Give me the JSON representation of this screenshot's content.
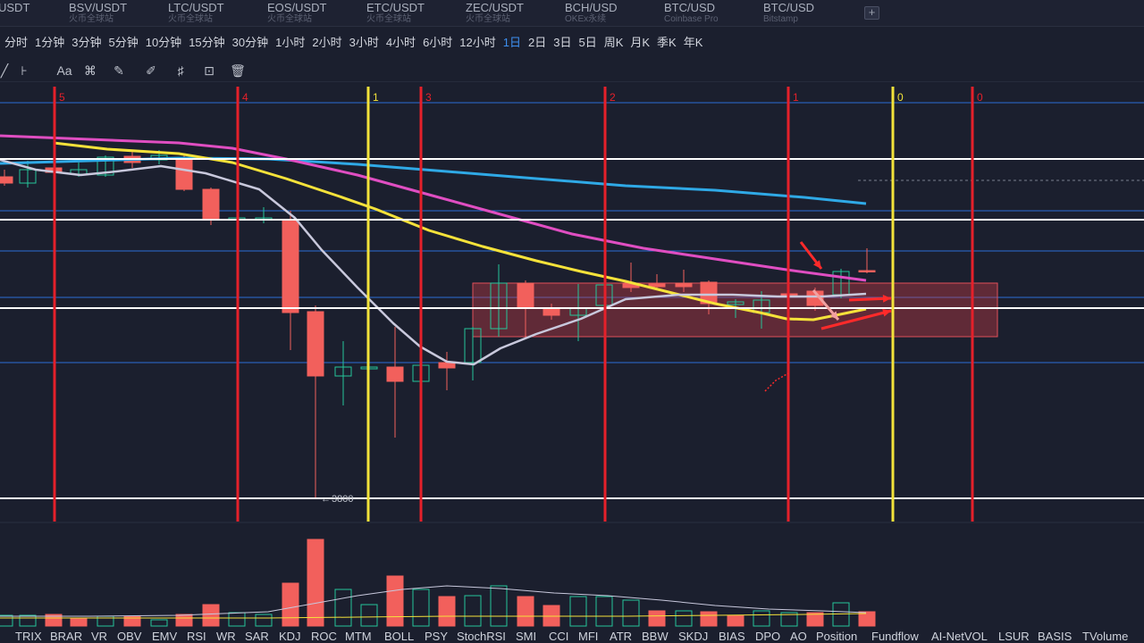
{
  "tabs": [
    {
      "symbol": "USDT",
      "exchange": ""
    },
    {
      "symbol": "BSV/USDT",
      "exchange": "火币全球站"
    },
    {
      "symbol": "LTC/USDT",
      "exchange": "火币全球站"
    },
    {
      "symbol": "EOS/USDT",
      "exchange": "火币全球站"
    },
    {
      "symbol": "ETC/USDT",
      "exchange": "火币全球站"
    },
    {
      "symbol": "ZEC/USDT",
      "exchange": "火币全球站"
    },
    {
      "symbol": "BCH/USD",
      "exchange": "OKEx永续"
    },
    {
      "symbol": "BTC/USD",
      "exchange": "Coinbase Pro"
    },
    {
      "symbol": "BTC/USD",
      "exchange": "Bitstamp"
    }
  ],
  "tab_add_label": "+",
  "intervals": [
    "分时",
    "1分钟",
    "3分钟",
    "5分钟",
    "10分钟",
    "15分钟",
    "30分钟",
    "1小时",
    "2小时",
    "3小时",
    "4小时",
    "6小时",
    "12小时",
    "1日",
    "2日",
    "3日",
    "5日",
    "周K",
    "月K",
    "季K",
    "年K"
  ],
  "active_interval": "1日",
  "tools": {
    "text_label": "Aa"
  },
  "price_label": "3800",
  "vertical_markers": [
    {
      "label": "5",
      "color": "#e5202a"
    },
    {
      "label": "4",
      "color": "#e5202a"
    },
    {
      "label": "1",
      "color": "#f2e23a"
    },
    {
      "label": "3",
      "color": "#e5202a"
    },
    {
      "label": "2",
      "color": "#e5202a"
    },
    {
      "label": "1",
      "color": "#e5202a"
    },
    {
      "label": "0",
      "color": "#f2e23a"
    },
    {
      "label": "0",
      "color": "#e5202a"
    }
  ],
  "indicators": [
    "TRIX",
    "BRAR",
    "VR",
    "OBV",
    "EMV",
    "RSI",
    "WR",
    "SAR",
    "KDJ",
    "ROC",
    "MTM",
    "BOLL",
    "PSY",
    "StochRSI",
    "SMI",
    "CCI",
    "MFI",
    "ATR",
    "BBW",
    "SKDJ",
    "BIAS",
    "DPO",
    "AO",
    "Position",
    "Fundflow",
    "AI-NetVOL",
    "LSUR",
    "BASIS",
    "TVolume"
  ],
  "colors": {
    "background": "#1b1f2e",
    "up": "#26c59a",
    "down": "#f2605c",
    "ma_cyan": "#2fa9e6",
    "ma_magenta": "#e04ec2",
    "ma_yellow": "#f5e23a",
    "ma_white": "#c8c8dc",
    "active": "#3d8ff0"
  }
}
